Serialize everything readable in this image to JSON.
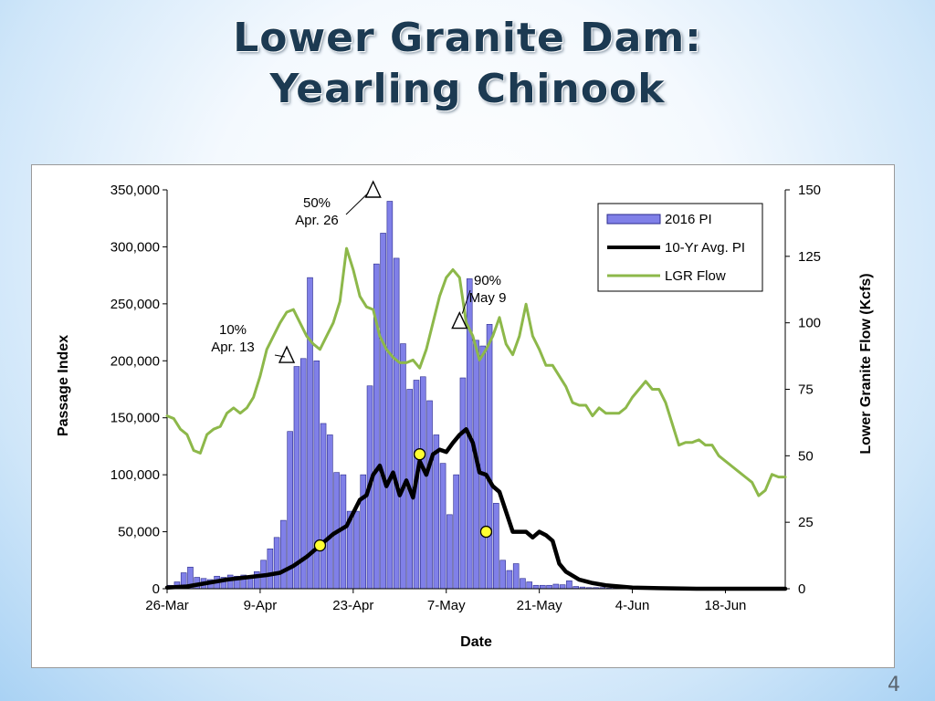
{
  "slide": {
    "title_line1": "Lower Granite Dam:",
    "title_line2": "Yearling Chinook",
    "page_number": "4"
  },
  "chart_data": {
    "type": "bar",
    "title": "",
    "xlabel": "Date",
    "ylabel": "Passage Index",
    "y2label": "Lower Granite Flow  (Kcfs)",
    "ylim": [
      0,
      350000
    ],
    "y2lim": [
      0,
      150
    ],
    "yticks": [
      0,
      50000,
      100000,
      150000,
      200000,
      250000,
      300000,
      350000
    ],
    "ytick_labels": [
      "0",
      "50,000",
      "100,000",
      "150,000",
      "200,000",
      "250,000",
      "300,000",
      "350,000"
    ],
    "y2ticks": [
      0,
      25,
      50,
      75,
      100,
      125,
      150
    ],
    "y2tick_labels": [
      "0",
      "25",
      "50",
      "75",
      "100",
      "125",
      "150"
    ],
    "x_day_range": [
      0,
      93
    ],
    "xticks": [
      0,
      14,
      28,
      42,
      56,
      70,
      84
    ],
    "xtick_labels": [
      "26-Mar",
      "9-Apr",
      "23-Apr",
      "7-May",
      "21-May",
      "4-Jun",
      "18-Jun"
    ],
    "legend": {
      "position": "top-right",
      "items": [
        {
          "label": "2016 PI",
          "kind": "bar",
          "color": "#8080e8"
        },
        {
          "label": "10-Yr Avg. PI",
          "kind": "line",
          "color": "#000000"
        },
        {
          "label": "LGR Flow",
          "kind": "line",
          "color": "#8db84a"
        }
      ]
    },
    "colors": {
      "bars": "#8080e8",
      "bar_edge": "#2a2a8c",
      "avg_line": "#000000",
      "flow_line": "#8db84a",
      "marker_fill": "#ffff33"
    },
    "series": [
      {
        "name": "2016 PI",
        "axis": "left",
        "values": [
          3000,
          6000,
          14000,
          19000,
          10000,
          9000,
          8000,
          11000,
          10000,
          12000,
          11000,
          12000,
          10000,
          15000,
          25000,
          35000,
          45000,
          60000,
          138000,
          195000,
          202000,
          273000,
          200000,
          145000,
          135000,
          102000,
          100000,
          68000,
          68000,
          100000,
          178000,
          285000,
          312000,
          340000,
          290000,
          215000,
          175000,
          183000,
          186000,
          165000,
          135000,
          110000,
          65000,
          100000,
          185000,
          272000,
          218000,
          213000,
          232000,
          75000,
          25000,
          16000,
          22000,
          9000,
          6000,
          3000,
          3000,
          3000,
          4000,
          3500,
          7000,
          2000,
          1500,
          1000,
          1000,
          1000,
          500,
          500
        ]
      },
      {
        "name": "10-Yr Avg. PI",
        "axis": "left",
        "x": [
          0,
          3,
          6,
          9,
          12,
          15,
          17,
          19,
          21,
          23,
          25,
          27,
          29,
          30,
          31,
          32,
          33,
          34,
          35,
          36,
          37,
          38,
          39,
          40,
          41,
          42,
          43,
          44,
          45,
          46,
          47,
          48,
          49,
          50,
          52,
          54,
          55,
          56,
          57,
          58,
          59,
          60,
          62,
          64,
          66,
          70,
          74,
          80,
          86,
          93
        ],
        "values": [
          1000,
          2000,
          5000,
          8000,
          10000,
          12000,
          14000,
          20000,
          28000,
          38000,
          48000,
          55000,
          78000,
          82000,
          100000,
          108000,
          90000,
          102000,
          82000,
          95000,
          80000,
          112000,
          100000,
          118000,
          122000,
          120000,
          128000,
          135000,
          140000,
          128000,
          102000,
          100000,
          90000,
          85000,
          50000,
          50000,
          45000,
          50000,
          47000,
          42000,
          22000,
          15000,
          8000,
          5000,
          3000,
          1000,
          500,
          0,
          0,
          0
        ]
      },
      {
        "name": "LGR Flow",
        "axis": "right",
        "x": [
          0,
          1,
          2,
          3,
          4,
          5,
          6,
          7,
          8,
          9,
          10,
          11,
          12,
          13,
          14,
          15,
          16,
          17,
          18,
          19,
          20,
          21,
          22,
          23,
          24,
          25,
          26,
          27,
          28,
          29,
          30,
          31,
          32,
          33,
          34,
          35,
          36,
          37,
          38,
          39,
          40,
          41,
          42,
          43,
          44,
          45,
          46,
          47,
          48,
          49,
          50,
          51,
          52,
          53,
          54,
          55,
          56,
          57,
          58,
          59,
          60,
          61,
          62,
          63,
          64,
          65,
          66,
          67,
          68,
          69,
          70,
          71,
          72,
          73,
          74,
          75,
          76,
          77,
          78,
          79,
          80,
          81,
          82,
          83,
          84,
          85,
          86,
          87,
          88,
          89,
          90,
          91,
          92,
          93
        ],
        "values": [
          65,
          64,
          60,
          58,
          52,
          51,
          58,
          60,
          61,
          66,
          68,
          66,
          68,
          72,
          80,
          90,
          95,
          100,
          104,
          105,
          100,
          95,
          92,
          90,
          95,
          100,
          108,
          128,
          120,
          110,
          106,
          105,
          95,
          90,
          87,
          85,
          85,
          86,
          83,
          90,
          100,
          110,
          117,
          120,
          117,
          100,
          95,
          86,
          90,
          95,
          102,
          92,
          88,
          95,
          107,
          95,
          90,
          84,
          84,
          80,
          76,
          70,
          69,
          69,
          65,
          68,
          66,
          66,
          66,
          68,
          72,
          75,
          78,
          75,
          75,
          70,
          62,
          54,
          55,
          55,
          56,
          54,
          54,
          50,
          48,
          46,
          44,
          42,
          40,
          35,
          37,
          43,
          42,
          42
        ]
      }
    ],
    "markers": [
      {
        "label_line1": "10%",
        "label_line2": "Apr. 13",
        "kind": "triangle",
        "day": 18,
        "value": 205000
      },
      {
        "label_line1": "50%",
        "label_line2": "Apr. 26",
        "kind": "triangle",
        "day": 31,
        "value": 350000
      },
      {
        "label_line1": "90%",
        "label_line2": "May 9",
        "kind": "triangle",
        "day": 44,
        "value": 235000
      },
      {
        "kind": "circle",
        "day": 23,
        "value": 38000
      },
      {
        "kind": "circle",
        "day": 38,
        "value": 118000
      },
      {
        "kind": "circle",
        "day": 48,
        "value": 50000
      }
    ]
  }
}
